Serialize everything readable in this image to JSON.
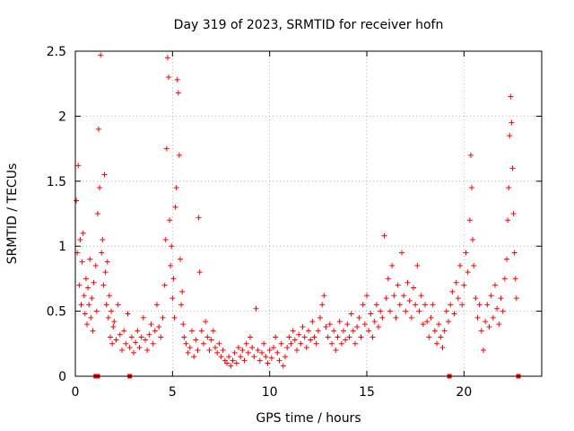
{
  "chart_data": {
    "type": "scatter",
    "title": "Day 319 of 2023, SRMTID for receiver hofn",
    "xlabel": "GPS time / hours",
    "ylabel": "SRMTID / TECUs",
    "xlim": [
      0,
      24
    ],
    "ylim": [
      0,
      2.5
    ],
    "xticks": [
      0,
      5,
      10,
      15,
      20
    ],
    "xtick_labels": [
      "0",
      "5",
      "10",
      "15",
      "20"
    ],
    "yticks": [
      0,
      0.5,
      1,
      1.5,
      2,
      2.5
    ],
    "ytick_labels": [
      "0",
      "0.5",
      "1",
      "1.5",
      "2",
      "2.5"
    ],
    "grid": true,
    "marker": "plus",
    "color": "#ff0000",
    "series": [
      {
        "name": "SRMTID",
        "points": [
          [
            0.05,
            1.35
          ],
          [
            0.1,
            0.95
          ],
          [
            0.15,
            1.62
          ],
          [
            0.2,
            0.7
          ],
          [
            0.25,
            1.05
          ],
          [
            0.3,
            0.55
          ],
          [
            0.35,
            0.88
          ],
          [
            0.4,
            1.1
          ],
          [
            0.45,
            0.62
          ],
          [
            0.5,
            0.48
          ],
          [
            0.55,
            0.75
          ],
          [
            0.6,
            0.4
          ],
          [
            0.65,
            0.68
          ],
          [
            0.7,
            0.55
          ],
          [
            0.75,
            0.9
          ],
          [
            0.8,
            0.45
          ],
          [
            0.85,
            0.6
          ],
          [
            0.9,
            0.35
          ],
          [
            0.95,
            0.72
          ],
          [
            1.05,
            0.85
          ],
          [
            1.1,
            0.5
          ],
          [
            1.15,
            1.25
          ],
          [
            1.2,
            1.9
          ],
          [
            1.25,
            1.45
          ],
          [
            1.3,
            2.47
          ],
          [
            1.35,
            0.95
          ],
          [
            1.4,
            1.05
          ],
          [
            1.45,
            0.7
          ],
          [
            1.5,
            1.55
          ],
          [
            1.55,
            0.8
          ],
          [
            1.6,
            0.55
          ],
          [
            1.65,
            0.88
          ],
          [
            1.7,
            0.45
          ],
          [
            1.75,
            0.62
          ],
          [
            1.8,
            0.3
          ],
          [
            1.85,
            0.5
          ],
          [
            1.9,
            0.25
          ],
          [
            1.95,
            0.38
          ],
          [
            2.0,
            0.42
          ],
          [
            2.1,
            0.28
          ],
          [
            2.2,
            0.55
          ],
          [
            2.3,
            0.32
          ],
          [
            2.4,
            0.2
          ],
          [
            2.5,
            0.35
          ],
          [
            2.6,
            0.25
          ],
          [
            2.7,
            0.48
          ],
          [
            2.8,
            0.22
          ],
          [
            2.9,
            0.3
          ],
          [
            3.0,
            0.18
          ],
          [
            3.1,
            0.26
          ],
          [
            3.2,
            0.35
          ],
          [
            3.3,
            0.22
          ],
          [
            3.4,
            0.3
          ],
          [
            3.5,
            0.45
          ],
          [
            3.6,
            0.28
          ],
          [
            3.7,
            0.2
          ],
          [
            3.8,
            0.32
          ],
          [
            3.9,
            0.4
          ],
          [
            4.0,
            0.25
          ],
          [
            4.1,
            0.35
          ],
          [
            4.2,
            0.55
          ],
          [
            4.3,
            0.38
          ],
          [
            4.4,
            0.3
          ],
          [
            4.5,
            0.45
          ],
          [
            4.6,
            0.7
          ],
          [
            4.65,
            1.05
          ],
          [
            4.7,
            1.75
          ],
          [
            4.75,
            2.45
          ],
          [
            4.8,
            2.3
          ],
          [
            4.85,
            1.2
          ],
          [
            4.9,
            0.85
          ],
          [
            4.95,
            1.0
          ],
          [
            5.0,
            0.6
          ],
          [
            5.05,
            0.75
          ],
          [
            5.1,
            0.45
          ],
          [
            5.15,
            1.3
          ],
          [
            5.2,
            1.45
          ],
          [
            5.25,
            2.28
          ],
          [
            5.3,
            2.18
          ],
          [
            5.35,
            1.7
          ],
          [
            5.4,
            0.9
          ],
          [
            5.45,
            0.55
          ],
          [
            5.5,
            0.65
          ],
          [
            5.55,
            0.4
          ],
          [
            5.6,
            0.3
          ],
          [
            5.7,
            0.25
          ],
          [
            5.8,
            0.18
          ],
          [
            5.9,
            0.22
          ],
          [
            6.0,
            0.35
          ],
          [
            6.1,
            0.15
          ],
          [
            6.2,
            0.28
          ],
          [
            6.3,
            0.2
          ],
          [
            6.35,
            1.22
          ],
          [
            6.4,
            0.8
          ],
          [
            6.5,
            0.35
          ],
          [
            6.6,
            0.25
          ],
          [
            6.7,
            0.42
          ],
          [
            6.8,
            0.3
          ],
          [
            6.9,
            0.2
          ],
          [
            7.0,
            0.28
          ],
          [
            7.1,
            0.35
          ],
          [
            7.2,
            0.22
          ],
          [
            7.3,
            0.18
          ],
          [
            7.4,
            0.25
          ],
          [
            7.5,
            0.15
          ],
          [
            7.6,
            0.2
          ],
          [
            7.7,
            0.12
          ],
          [
            7.8,
            0.1
          ],
          [
            7.9,
            0.15
          ],
          [
            8.0,
            0.08
          ],
          [
            8.1,
            0.12
          ],
          [
            8.2,
            0.18
          ],
          [
            8.3,
            0.1
          ],
          [
            8.4,
            0.22
          ],
          [
            8.5,
            0.15
          ],
          [
            8.6,
            0.2
          ],
          [
            8.7,
            0.12
          ],
          [
            8.8,
            0.25
          ],
          [
            8.9,
            0.18
          ],
          [
            9.0,
            0.3
          ],
          [
            9.1,
            0.22
          ],
          [
            9.2,
            0.15
          ],
          [
            9.3,
            0.52
          ],
          [
            9.4,
            0.2
          ],
          [
            9.5,
            0.12
          ],
          [
            9.6,
            0.18
          ],
          [
            9.7,
            0.25
          ],
          [
            9.8,
            0.15
          ],
          [
            9.9,
            0.1
          ],
          [
            10.0,
            0.2
          ],
          [
            10.1,
            0.14
          ],
          [
            10.2,
            0.22
          ],
          [
            10.3,
            0.3
          ],
          [
            10.4,
            0.18
          ],
          [
            10.5,
            0.12
          ],
          [
            10.6,
            0.25
          ],
          [
            10.7,
            0.08
          ],
          [
            10.8,
            0.15
          ],
          [
            10.9,
            0.22
          ],
          [
            11.0,
            0.3
          ],
          [
            11.1,
            0.25
          ],
          [
            11.2,
            0.35
          ],
          [
            11.3,
            0.28
          ],
          [
            11.4,
            0.2
          ],
          [
            11.5,
            0.32
          ],
          [
            11.6,
            0.25
          ],
          [
            11.7,
            0.38
          ],
          [
            11.8,
            0.3
          ],
          [
            11.9,
            0.22
          ],
          [
            12.0,
            0.35
          ],
          [
            12.1,
            0.28
          ],
          [
            12.2,
            0.42
          ],
          [
            12.3,
            0.3
          ],
          [
            12.4,
            0.25
          ],
          [
            12.5,
            0.35
          ],
          [
            12.6,
            0.45
          ],
          [
            12.7,
            0.55
          ],
          [
            12.8,
            0.62
          ],
          [
            12.9,
            0.38
          ],
          [
            13.0,
            0.3
          ],
          [
            13.1,
            0.4
          ],
          [
            13.2,
            0.25
          ],
          [
            13.3,
            0.35
          ],
          [
            13.4,
            0.2
          ],
          [
            13.5,
            0.3
          ],
          [
            13.6,
            0.42
          ],
          [
            13.7,
            0.25
          ],
          [
            13.8,
            0.35
          ],
          [
            13.9,
            0.28
          ],
          [
            14.0,
            0.4
          ],
          [
            14.1,
            0.3
          ],
          [
            14.2,
            0.48
          ],
          [
            14.3,
            0.35
          ],
          [
            14.4,
            0.25
          ],
          [
            14.5,
            0.38
          ],
          [
            14.6,
            0.45
          ],
          [
            14.7,
            0.3
          ],
          [
            14.8,
            0.55
          ],
          [
            14.9,
            0.4
          ],
          [
            15.0,
            0.62
          ],
          [
            15.1,
            0.35
          ],
          [
            15.2,
            0.48
          ],
          [
            15.3,
            0.3
          ],
          [
            15.4,
            0.42
          ],
          [
            15.5,
            0.55
          ],
          [
            15.6,
            0.38
          ],
          [
            15.7,
            0.5
          ],
          [
            15.8,
            0.45
          ],
          [
            15.9,
            1.08
          ],
          [
            16.0,
            0.6
          ],
          [
            16.1,
            0.75
          ],
          [
            16.2,
            0.5
          ],
          [
            16.3,
            0.85
          ],
          [
            16.4,
            0.62
          ],
          [
            16.5,
            0.45
          ],
          [
            16.6,
            0.7
          ],
          [
            16.7,
            0.55
          ],
          [
            16.8,
            0.95
          ],
          [
            16.9,
            0.62
          ],
          [
            17.0,
            0.5
          ],
          [
            17.1,
            0.72
          ],
          [
            17.2,
            0.58
          ],
          [
            17.3,
            0.45
          ],
          [
            17.4,
            0.68
          ],
          [
            17.5,
            0.55
          ],
          [
            17.6,
            0.85
          ],
          [
            17.7,
            0.5
          ],
          [
            17.8,
            0.62
          ],
          [
            17.9,
            0.4
          ],
          [
            18.0,
            0.55
          ],
          [
            18.1,
            0.42
          ],
          [
            18.2,
            0.3
          ],
          [
            18.3,
            0.45
          ],
          [
            18.4,
            0.55
          ],
          [
            18.5,
            0.35
          ],
          [
            18.6,
            0.25
          ],
          [
            18.7,
            0.4
          ],
          [
            18.8,
            0.3
          ],
          [
            18.9,
            0.22
          ],
          [
            19.0,
            0.35
          ],
          [
            19.1,
            0.5
          ],
          [
            19.2,
            0.42
          ],
          [
            19.3,
            0.55
          ],
          [
            19.4,
            0.65
          ],
          [
            19.5,
            0.48
          ],
          [
            19.6,
            0.72
          ],
          [
            19.7,
            0.6
          ],
          [
            19.8,
            0.85
          ],
          [
            19.9,
            0.55
          ],
          [
            20.0,
            0.7
          ],
          [
            20.1,
            0.95
          ],
          [
            20.2,
            0.8
          ],
          [
            20.3,
            1.2
          ],
          [
            20.35,
            1.7
          ],
          [
            20.4,
            1.45
          ],
          [
            20.45,
            1.05
          ],
          [
            20.5,
            0.85
          ],
          [
            20.6,
            0.6
          ],
          [
            20.7,
            0.45
          ],
          [
            20.8,
            0.55
          ],
          [
            20.9,
            0.35
          ],
          [
            21.0,
            0.2
          ],
          [
            21.1,
            0.42
          ],
          [
            21.2,
            0.55
          ],
          [
            21.3,
            0.38
          ],
          [
            21.4,
            0.62
          ],
          [
            21.5,
            0.45
          ],
          [
            21.6,
            0.7
          ],
          [
            21.7,
            0.52
          ],
          [
            21.8,
            0.4
          ],
          [
            21.9,
            0.6
          ],
          [
            22.0,
            0.5
          ],
          [
            22.1,
            0.75
          ],
          [
            22.2,
            0.9
          ],
          [
            22.25,
            1.2
          ],
          [
            22.3,
            1.45
          ],
          [
            22.35,
            1.85
          ],
          [
            22.4,
            2.15
          ],
          [
            22.45,
            1.95
          ],
          [
            22.5,
            1.6
          ],
          [
            22.55,
            1.25
          ],
          [
            22.6,
            0.95
          ],
          [
            22.65,
            0.75
          ],
          [
            22.7,
            0.6
          ]
        ]
      }
    ],
    "zero_markers": [
      {
        "x": 1.05,
        "y": 0.0
      },
      {
        "x": 1.15,
        "y": 0.0
      },
      {
        "x": 2.8,
        "y": 0.0
      },
      {
        "x": 19.25,
        "y": 0.0
      },
      {
        "x": 22.8,
        "y": 0.0
      }
    ]
  }
}
